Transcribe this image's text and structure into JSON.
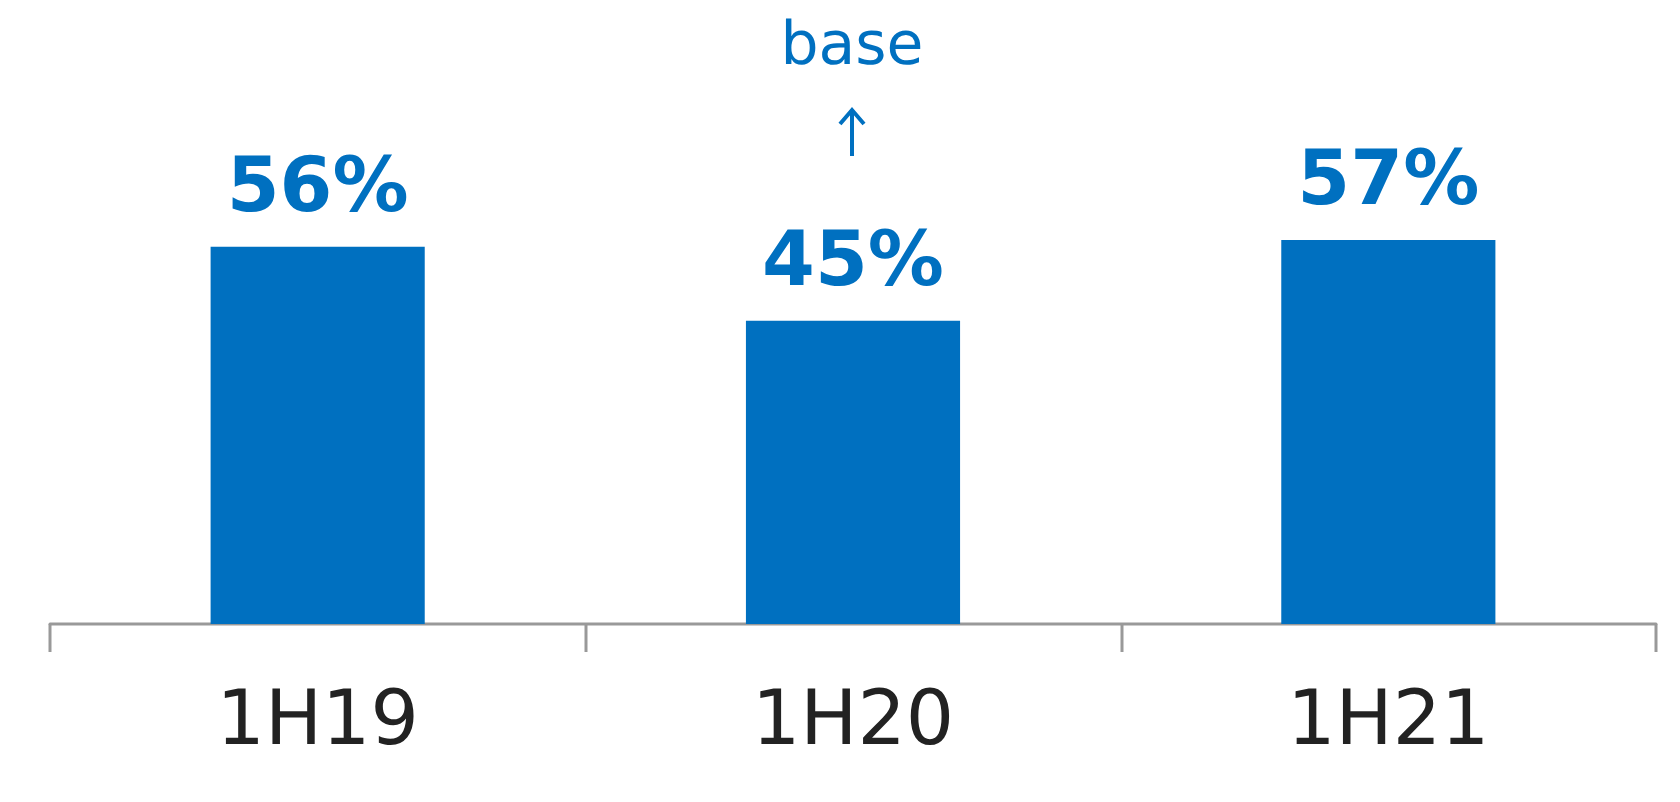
{
  "chart_data": {
    "type": "bar",
    "categories": [
      "1H19",
      "1H20",
      "1H21"
    ],
    "values": [
      56,
      45,
      57
    ],
    "color": "#0070c0",
    "value_labels": [
      "56%",
      "45%",
      "57%"
    ],
    "annotations": [
      "base"
    ]
  }
}
